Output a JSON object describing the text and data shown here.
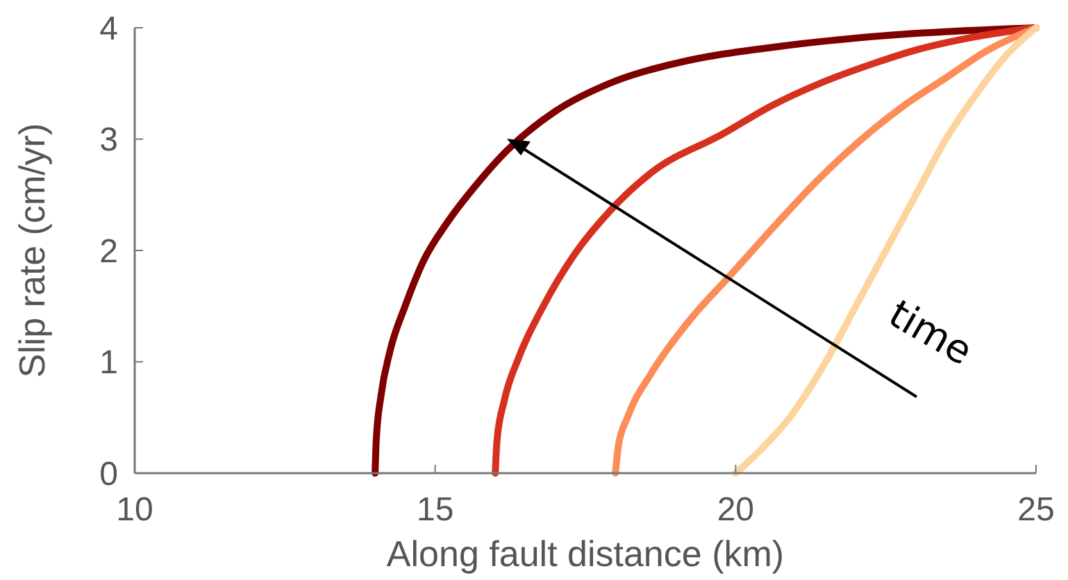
{
  "chart_data": {
    "type": "line",
    "xlabel": "Along fault distance (km)",
    "ylabel": "Slip rate (cm/yr)",
    "xlim": [
      10,
      25
    ],
    "ylim": [
      0,
      4
    ],
    "xticks": [
      10,
      15,
      20,
      25
    ],
    "yticks": [
      0,
      1,
      2,
      3,
      4
    ],
    "grid": false,
    "marker": "none",
    "line_style": "solid",
    "annotations": [
      "time"
    ],
    "series": [
      {
        "color": "#7f0000",
        "x": [
          14,
          14.02,
          14.1,
          14.25,
          14.5,
          14.8,
          15.2,
          15.7,
          16.2,
          17,
          17.9,
          19,
          20.7,
          22.5,
          25
        ],
        "values": [
          0,
          0.3,
          0.7,
          1.1,
          1.5,
          1.9,
          2.25,
          2.6,
          2.9,
          3.25,
          3.5,
          3.68,
          3.83,
          3.93,
          4
        ]
      },
      {
        "color": "#d7301f",
        "x": [
          16,
          16.03,
          16.15,
          16.4,
          16.8,
          17.3,
          17.9,
          18.6,
          19.8,
          20.6,
          21.4,
          22.3,
          23,
          24,
          25
        ],
        "values": [
          0,
          0.3,
          0.65,
          1.05,
          1.5,
          1.95,
          2.35,
          2.7,
          3.05,
          3.3,
          3.5,
          3.68,
          3.8,
          3.92,
          4
        ]
      },
      {
        "color": "#fc8d59",
        "x": [
          18,
          18.05,
          18.2,
          18.6,
          19.2,
          19.95,
          20.7,
          21.4,
          22.1,
          22.8,
          23.5,
          24.2,
          25
        ],
        "values": [
          0,
          0.25,
          0.5,
          0.9,
          1.35,
          1.8,
          2.25,
          2.65,
          3,
          3.3,
          3.55,
          3.8,
          4
        ]
      },
      {
        "color": "#fdd49e",
        "x": [
          20,
          20.4,
          20.9,
          21.5,
          22,
          22.5,
          23,
          23.5,
          24,
          24.5,
          25
        ],
        "values": [
          0,
          0.2,
          0.5,
          1,
          1.5,
          2,
          2.5,
          3,
          3.4,
          3.75,
          4
        ]
      }
    ]
  }
}
